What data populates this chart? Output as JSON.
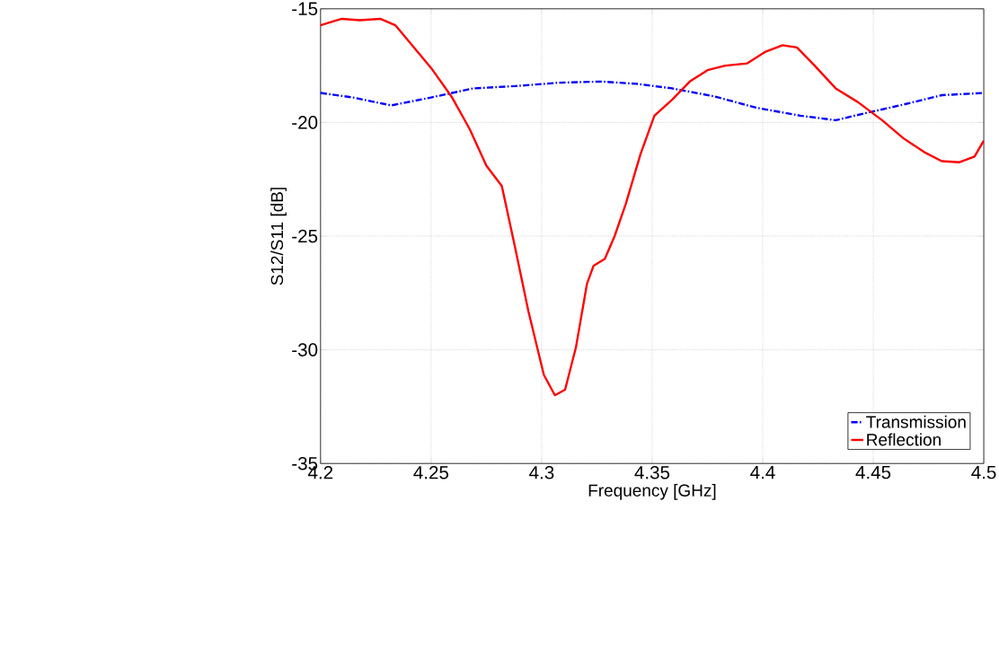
{
  "chart_data": {
    "type": "line",
    "xlabel": "Frequency [GHz]",
    "ylabel": "S12/S11 [dB]",
    "xlim": [
      4.2,
      4.5
    ],
    "ylim": [
      -35,
      -15
    ],
    "xticks": [
      4.2,
      4.25,
      4.3,
      4.35,
      4.4,
      4.45,
      4.5
    ],
    "yticks": [
      -35,
      -30,
      -25,
      -20,
      -15
    ],
    "grid": true,
    "legend": "bottom right",
    "series": [
      {
        "name": "Transmission",
        "color": "#0000ff",
        "line_style": "dashdot",
        "x": [
          4.2,
          4.2145,
          4.232,
          4.25,
          4.269,
          4.288,
          4.308,
          4.327,
          4.343,
          4.359,
          4.378,
          4.397,
          4.417,
          4.433,
          4.446,
          4.462,
          4.481,
          4.5
        ],
        "values": [
          -18.7,
          -18.9,
          -19.25,
          -18.9,
          -18.5,
          -18.4,
          -18.25,
          -18.2,
          -18.3,
          -18.5,
          -18.85,
          -19.35,
          -19.7,
          -19.9,
          -19.6,
          -19.25,
          -18.8,
          -18.7
        ]
      },
      {
        "name": "Reflection",
        "color": "#ff0000",
        "line_style": "solid",
        "x": [
          4.2,
          4.2096,
          4.2177,
          4.227,
          4.2338,
          4.24,
          4.25,
          4.2595,
          4.2675,
          4.275,
          4.282,
          4.288,
          4.294,
          4.301,
          4.306,
          4.3106,
          4.3155,
          4.3205,
          4.3235,
          4.3286,
          4.333,
          4.338,
          4.3447,
          4.351,
          4.359,
          4.367,
          4.375,
          4.383,
          4.393,
          4.401,
          4.409,
          4.4155,
          4.4235,
          4.433,
          4.443,
          4.454,
          4.4637,
          4.473,
          4.481,
          4.489,
          4.4958,
          4.5
        ],
        "values": [
          -15.72,
          -15.44,
          -15.5,
          -15.44,
          -15.72,
          -16.44,
          -17.6,
          -18.9,
          -20.3,
          -21.9,
          -22.8,
          -25.5,
          -28.3,
          -31.1,
          -32,
          -31.75,
          -29.9,
          -27.1,
          -26.3,
          -26,
          -25,
          -23.6,
          -21.4,
          -19.7,
          -19,
          -18.2,
          -17.7,
          -17.5,
          -17.4,
          -16.9,
          -16.6,
          -16.7,
          -17.5,
          -18.5,
          -19.1,
          -19.9,
          -20.7,
          -21.3,
          -21.7,
          -21.75,
          -21.5,
          -20.8
        ]
      }
    ]
  }
}
